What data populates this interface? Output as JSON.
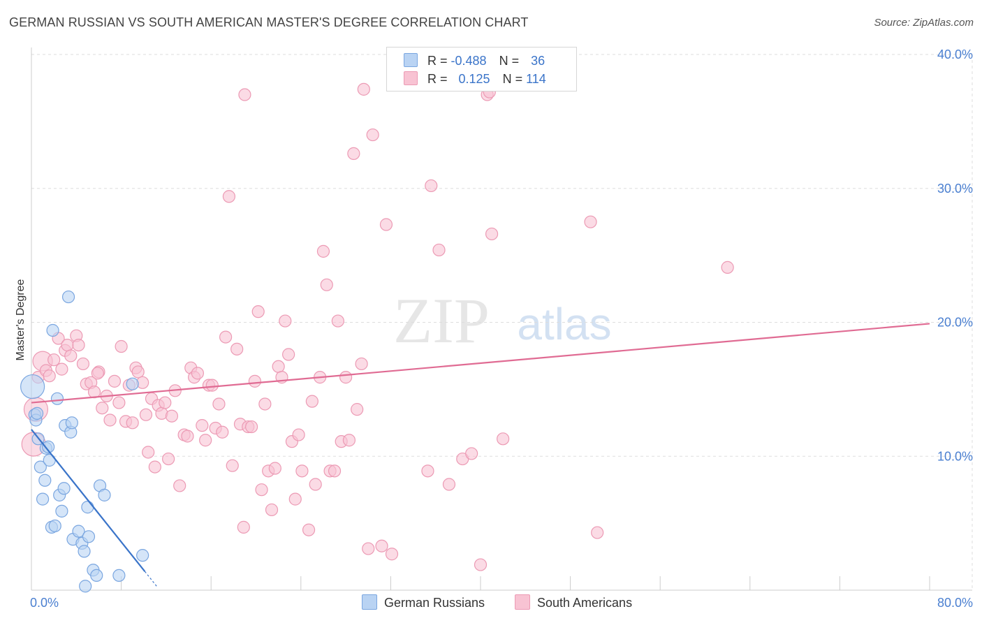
{
  "title": "GERMAN RUSSIAN VS SOUTH AMERICAN MASTER'S DEGREE CORRELATION CHART",
  "source": "Source: ZipAtlas.com",
  "watermark": {
    "zip": "ZIP",
    "atlas": "atlas"
  },
  "legend": {
    "rows": [
      {
        "r_label": "R = ",
        "r_value": "-0.488",
        "n_label": "N = ",
        "n_value": "36"
      },
      {
        "r_label": "R = ",
        "r_value": "0.125",
        "n_label": "N = ",
        "n_value": "114"
      }
    ]
  },
  "bottom_legend": {
    "series1": "German Russians",
    "series2": "South Americans"
  },
  "colors": {
    "blue_fill": "#b9d3f3",
    "blue_stroke": "#7aa6e0",
    "blue_line": "#3a74c9",
    "pink_fill": "#f8c3d3",
    "pink_stroke": "#ec9ab4",
    "pink_line": "#e06b93",
    "axis_text": "#4a7fd0",
    "grid": "#dddddd"
  },
  "chart_data": {
    "type": "scatter",
    "title": "GERMAN RUSSIAN VS SOUTH AMERICAN MASTER'S DEGREE CORRELATION CHART",
    "xlabel": "",
    "ylabel": "Master's Degree",
    "xlim": [
      0,
      80
    ],
    "ylim": [
      0,
      40
    ],
    "x_tick_labels": [
      "0.0%",
      "80.0%"
    ],
    "y_ticks": [
      10,
      20,
      30,
      40
    ],
    "y_tick_labels": [
      "10.0%",
      "20.0%",
      "30.0%",
      "40.0%"
    ],
    "grid": true,
    "series": [
      {
        "name": "German Russians",
        "color": "blue",
        "r": -0.488,
        "n": 36,
        "trend": {
          "x0": 0,
          "y0": 12.0,
          "x1": 10.1,
          "y1": 1.4
        },
        "points": [
          [
            0.1,
            15.2
          ],
          [
            0.3,
            13.1
          ],
          [
            0.4,
            12.7
          ],
          [
            0.6,
            11.3
          ],
          [
            0.8,
            9.2
          ],
          [
            1.0,
            6.8
          ],
          [
            1.2,
            8.2
          ],
          [
            1.3,
            10.6
          ],
          [
            1.6,
            9.7
          ],
          [
            1.8,
            4.7
          ],
          [
            1.9,
            19.4
          ],
          [
            2.1,
            4.8
          ],
          [
            2.3,
            14.3
          ],
          [
            2.5,
            7.1
          ],
          [
            2.7,
            5.9
          ],
          [
            2.9,
            7.6
          ],
          [
            3.0,
            12.3
          ],
          [
            3.3,
            21.9
          ],
          [
            3.5,
            11.8
          ],
          [
            3.6,
            12.5
          ],
          [
            3.7,
            3.8
          ],
          [
            4.2,
            4.4
          ],
          [
            4.5,
            3.5
          ],
          [
            4.7,
            2.9
          ],
          [
            4.8,
            0.3
          ],
          [
            5.0,
            6.2
          ],
          [
            5.1,
            4.0
          ],
          [
            5.5,
            1.5
          ],
          [
            5.8,
            1.1
          ],
          [
            6.1,
            7.8
          ],
          [
            6.5,
            7.1
          ],
          [
            7.8,
            1.1
          ],
          [
            9.0,
            15.4
          ],
          [
            9.9,
            2.6
          ],
          [
            0.5,
            13.2
          ],
          [
            1.5,
            10.7
          ]
        ]
      },
      {
        "name": "South Americans",
        "color": "pink",
        "r": 0.125,
        "n": 114,
        "trend": {
          "x0": 0,
          "y0": 14.0,
          "x1": 80,
          "y1": 19.9
        },
        "points": [
          [
            0.2,
            10.9
          ],
          [
            0.4,
            13.5
          ],
          [
            0.6,
            15.9
          ],
          [
            1.0,
            17.1
          ],
          [
            1.3,
            16.4
          ],
          [
            1.6,
            16.0
          ],
          [
            2.0,
            17.2
          ],
          [
            2.4,
            18.8
          ],
          [
            2.7,
            16.5
          ],
          [
            3.0,
            17.9
          ],
          [
            3.2,
            18.3
          ],
          [
            3.5,
            17.5
          ],
          [
            4.0,
            19.0
          ],
          [
            4.2,
            18.3
          ],
          [
            4.6,
            16.9
          ],
          [
            4.9,
            15.4
          ],
          [
            5.3,
            15.5
          ],
          [
            5.6,
            14.8
          ],
          [
            6.0,
            16.3
          ],
          [
            6.3,
            13.6
          ],
          [
            6.7,
            14.5
          ],
          [
            7.0,
            12.7
          ],
          [
            7.4,
            15.6
          ],
          [
            7.8,
            14.0
          ],
          [
            8.0,
            18.2
          ],
          [
            8.4,
            12.6
          ],
          [
            8.7,
            15.3
          ],
          [
            9.0,
            12.5
          ],
          [
            9.3,
            16.6
          ],
          [
            9.5,
            16.3
          ],
          [
            9.9,
            15.5
          ],
          [
            10.2,
            13.1
          ],
          [
            10.4,
            10.3
          ],
          [
            10.7,
            14.3
          ],
          [
            11.0,
            9.2
          ],
          [
            11.3,
            13.8
          ],
          [
            11.6,
            13.2
          ],
          [
            11.9,
            14.0
          ],
          [
            12.2,
            9.8
          ],
          [
            12.5,
            13.0
          ],
          [
            12.8,
            14.9
          ],
          [
            13.2,
            7.8
          ],
          [
            13.6,
            11.6
          ],
          [
            13.9,
            11.5
          ],
          [
            14.2,
            16.6
          ],
          [
            14.5,
            15.9
          ],
          [
            14.8,
            16.2
          ],
          [
            15.2,
            12.3
          ],
          [
            15.5,
            11.2
          ],
          [
            15.8,
            15.3
          ],
          [
            16.1,
            15.3
          ],
          [
            16.4,
            12.1
          ],
          [
            16.7,
            13.9
          ],
          [
            17.0,
            11.8
          ],
          [
            17.3,
            18.9
          ],
          [
            17.6,
            29.4
          ],
          [
            17.9,
            9.3
          ],
          [
            18.3,
            18.0
          ],
          [
            18.6,
            12.4
          ],
          [
            18.9,
            4.7
          ],
          [
            19.0,
            37.0
          ],
          [
            19.3,
            12.2
          ],
          [
            19.6,
            12.2
          ],
          [
            19.9,
            15.6
          ],
          [
            20.2,
            20.8
          ],
          [
            20.5,
            7.5
          ],
          [
            20.8,
            13.9
          ],
          [
            21.1,
            8.9
          ],
          [
            21.4,
            6.0
          ],
          [
            21.7,
            9.1
          ],
          [
            22.0,
            16.7
          ],
          [
            22.3,
            15.9
          ],
          [
            22.6,
            20.1
          ],
          [
            22.9,
            17.6
          ],
          [
            23.2,
            11.1
          ],
          [
            23.5,
            6.8
          ],
          [
            23.8,
            11.6
          ],
          [
            24.1,
            8.9
          ],
          [
            24.7,
            4.5
          ],
          [
            25.0,
            14.1
          ],
          [
            25.3,
            7.9
          ],
          [
            25.7,
            15.9
          ],
          [
            26.0,
            25.3
          ],
          [
            26.3,
            22.8
          ],
          [
            26.6,
            8.9
          ],
          [
            27.0,
            8.9
          ],
          [
            27.3,
            20.1
          ],
          [
            27.6,
            11.1
          ],
          [
            28.0,
            15.9
          ],
          [
            28.3,
            11.2
          ],
          [
            28.7,
            32.6
          ],
          [
            29.0,
            13.5
          ],
          [
            29.4,
            16.9
          ],
          [
            29.6,
            37.4
          ],
          [
            30.0,
            3.1
          ],
          [
            30.4,
            34.0
          ],
          [
            31.2,
            3.3
          ],
          [
            31.6,
            27.3
          ],
          [
            32.1,
            2.7
          ],
          [
            35.3,
            8.9
          ],
          [
            35.6,
            30.2
          ],
          [
            36.3,
            25.4
          ],
          [
            37.2,
            7.9
          ],
          [
            38.4,
            9.8
          ],
          [
            39.2,
            10.2
          ],
          [
            40.0,
            1.9
          ],
          [
            40.6,
            37.0
          ],
          [
            40.8,
            37.2
          ],
          [
            41.0,
            26.6
          ],
          [
            42.0,
            11.3
          ],
          [
            49.8,
            27.5
          ],
          [
            50.4,
            4.3
          ],
          [
            62.0,
            24.1
          ],
          [
            5.9,
            16.2
          ]
        ]
      }
    ]
  }
}
